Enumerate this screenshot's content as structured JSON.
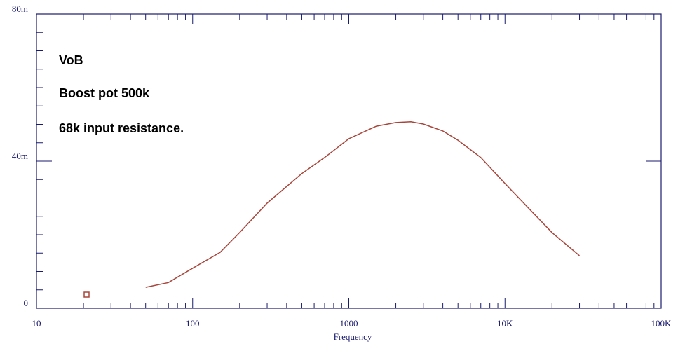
{
  "chart_data": {
    "type": "line",
    "annotations": [
      "VoB",
      "Boost pot 500k",
      "68k input resistance."
    ],
    "x_label": "Frequency",
    "log_x": true,
    "xlim": [
      10,
      100000
    ],
    "xticks": [
      10,
      100,
      1000,
      {
        "value": 10000,
        "label": "10K"
      },
      {
        "value": 100000,
        "label": "100K"
      }
    ],
    "ylim": [
      0,
      0.08
    ],
    "yticks": [
      0,
      {
        "value": 0.04,
        "label": "40m"
      },
      {
        "value": 0.08,
        "label": "80m"
      }
    ],
    "grid": false,
    "series": [
      {
        "color": "#a8453a",
        "x": [
          50,
          70,
          100,
          150,
          200,
          300,
          500,
          700,
          1000,
          1500,
          2000,
          2500,
          3000,
          4000,
          5000,
          7000,
          10000,
          15000,
          20000,
          30000
        ],
        "values": [
          0.0057,
          0.007,
          0.0109,
          0.0152,
          0.0206,
          0.0286,
          0.0366,
          0.041,
          0.0461,
          0.0495,
          0.0505,
          0.0507,
          0.0501,
          0.0482,
          0.0457,
          0.041,
          0.0339,
          0.0261,
          0.0206,
          0.0143
        ]
      }
    ]
  }
}
